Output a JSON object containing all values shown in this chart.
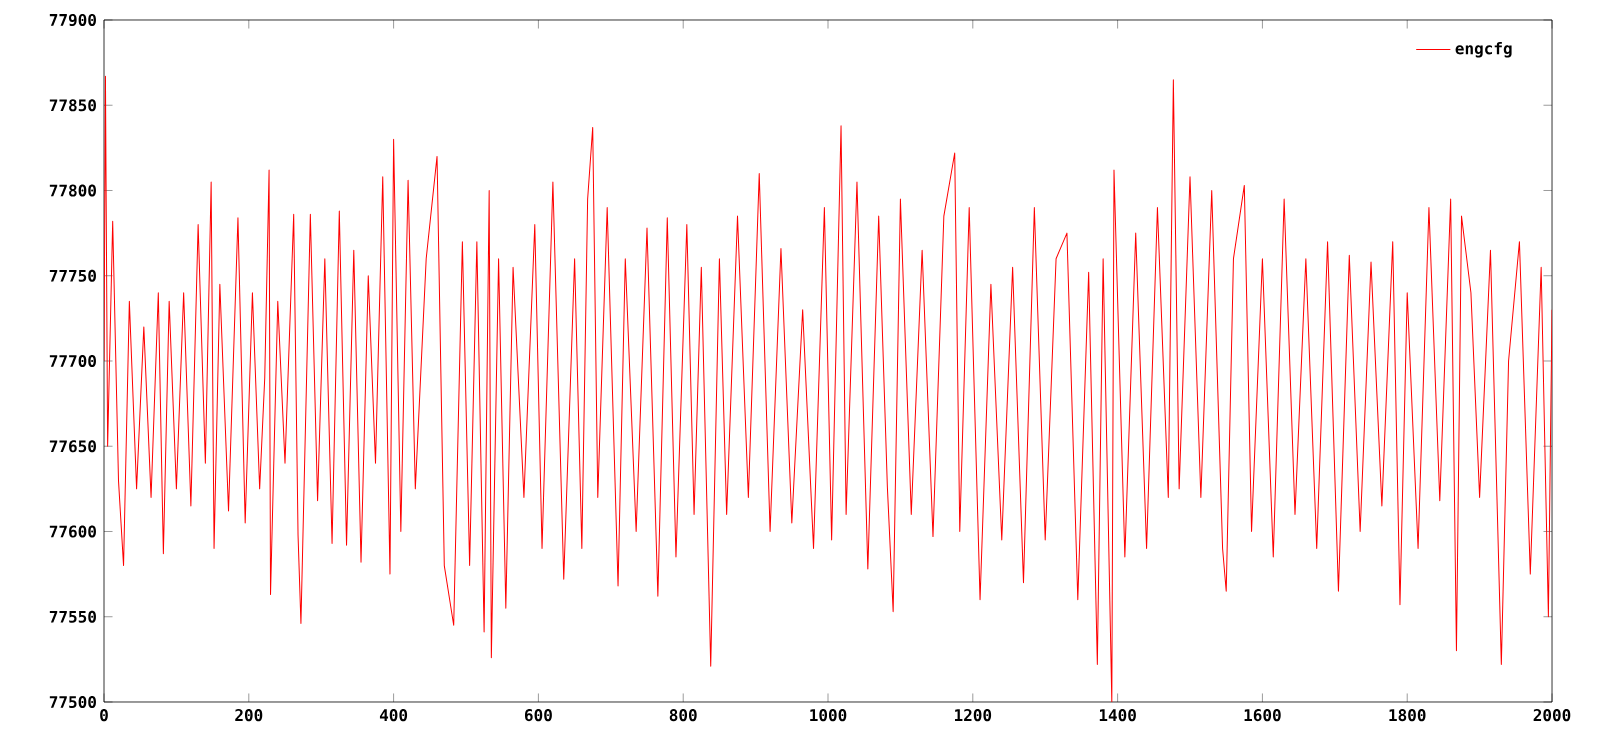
{
  "chart_data": {
    "type": "line",
    "x": [
      0,
      2,
      5,
      12,
      20,
      27,
      35,
      45,
      55,
      65,
      75,
      82,
      90,
      100,
      110,
      120,
      130,
      140,
      148,
      152,
      160,
      172,
      185,
      195,
      205,
      215,
      222,
      228,
      230,
      240,
      250,
      262,
      268,
      272,
      285,
      295,
      305,
      315,
      325,
      335,
      345,
      355,
      365,
      375,
      385,
      395,
      400,
      410,
      420,
      430,
      445,
      460,
      470,
      483,
      495,
      505,
      515,
      525,
      532,
      535,
      545,
      555,
      565,
      580,
      595,
      605,
      620,
      635,
      650,
      660,
      668,
      675,
      682,
      695,
      710,
      720,
      735,
      750,
      765,
      778,
      790,
      805,
      815,
      825,
      838,
      850,
      860,
      875,
      890,
      905,
      920,
      935,
      950,
      965,
      980,
      995,
      1005,
      1018,
      1025,
      1040,
      1055,
      1070,
      1082,
      1090,
      1100,
      1115,
      1130,
      1145,
      1160,
      1175,
      1182,
      1195,
      1210,
      1225,
      1240,
      1255,
      1270,
      1285,
      1300,
      1315,
      1330,
      1345,
      1360,
      1372,
      1380,
      1392,
      1395,
      1410,
      1425,
      1440,
      1455,
      1470,
      1477,
      1485,
      1500,
      1515,
      1530,
      1545,
      1550,
      1560,
      1575,
      1585,
      1600,
      1615,
      1630,
      1645,
      1660,
      1675,
      1690,
      1705,
      1720,
      1735,
      1750,
      1765,
      1780,
      1790,
      1800,
      1815,
      1830,
      1845,
      1860,
      1868,
      1875,
      1888,
      1900,
      1915,
      1930,
      1940,
      1955,
      1970,
      1985,
      1995,
      2000
    ],
    "series": [
      {
        "name": "engcfg",
        "color": "#ff0000",
        "values": [
          77700,
          77867,
          77650,
          77782,
          77630,
          77580,
          77735,
          77625,
          77720,
          77620,
          77740,
          77587,
          77735,
          77625,
          77740,
          77615,
          77780,
          77640,
          77805,
          77590,
          77745,
          77612,
          77784,
          77605,
          77740,
          77625,
          77690,
          77812,
          77563,
          77735,
          77640,
          77786,
          77598,
          77546,
          77786,
          77618,
          77760,
          77593,
          77788,
          77592,
          77765,
          77582,
          77750,
          77640,
          77808,
          77575,
          77830,
          77600,
          77806,
          77625,
          77760,
          77820,
          77580,
          77545,
          77770,
          77580,
          77770,
          77541,
          77800,
          77526,
          77760,
          77555,
          77755,
          77620,
          77780,
          77590,
          77805,
          77572,
          77760,
          77590,
          77795,
          77837,
          77620,
          77790,
          77568,
          77760,
          77600,
          77778,
          77562,
          77784,
          77585,
          77780,
          77610,
          77755,
          77521,
          77760,
          77610,
          77785,
          77620,
          77810,
          77600,
          77766,
          77605,
          77730,
          77590,
          77790,
          77595,
          77838,
          77610,
          77805,
          77578,
          77785,
          77626,
          77553,
          77795,
          77610,
          77765,
          77597,
          77785,
          77822,
          77600,
          77790,
          77560,
          77745,
          77595,
          77755,
          77570,
          77790,
          77595,
          77760,
          77775,
          77560,
          77752,
          77522,
          77760,
          77500,
          77812,
          77585,
          77775,
          77590,
          77790,
          77620,
          77865,
          77625,
          77808,
          77620,
          77800,
          77590,
          77565,
          77760,
          77803,
          77600,
          77760,
          77585,
          77795,
          77610,
          77760,
          77590,
          77770,
          77565,
          77762,
          77600,
          77758,
          77615,
          77770,
          77557,
          77740,
          77590,
          77790,
          77618,
          77795,
          77530,
          77785,
          77740,
          77620,
          77765,
          77522,
          77700,
          77770,
          77575,
          77755,
          77550,
          77730
        ]
      }
    ],
    "xlim": [
      0,
      2000
    ],
    "ylim": [
      77500,
      77900
    ],
    "xticks": [
      0,
      200,
      400,
      600,
      800,
      1000,
      1200,
      1400,
      1600,
      1800,
      2000
    ],
    "yticks": [
      77500,
      77550,
      77600,
      77650,
      77700,
      77750,
      77800,
      77850,
      77900
    ],
    "legend": "top right",
    "grid": false
  }
}
